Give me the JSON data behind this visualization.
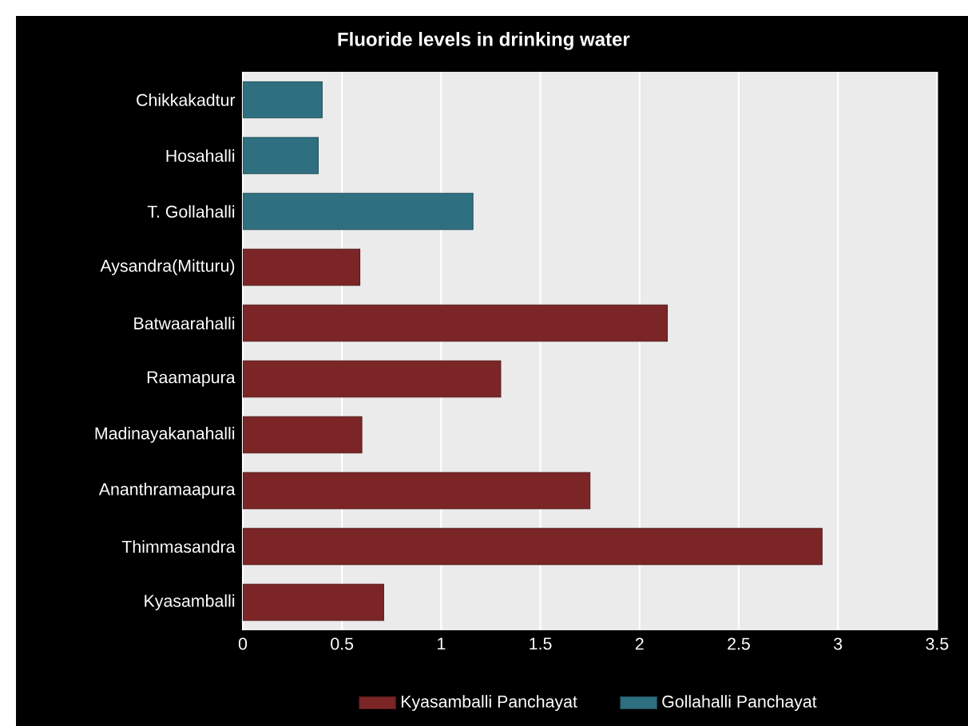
{
  "chart_data": {
    "type": "bar",
    "orientation": "horizontal",
    "title": "Fluoride levels in drinking water",
    "categories": [
      "Chikkakadtur",
      "Hosahalli",
      "T. Gollahalli",
      "Aysandra(Mitturu)",
      "Batwaarahalli",
      "Raamapura",
      "Madinayakanahalli",
      "Ananthramaapura",
      "Thimmasandra",
      "Kyasamballi"
    ],
    "series": [
      {
        "name": "Kyasamballi Panchayat",
        "color": "#7b2526",
        "values": [
          null,
          null,
          null,
          0.59,
          2.14,
          1.3,
          0.6,
          1.75,
          2.92,
          0.71
        ]
      },
      {
        "name": "Gollahalli Panchayat",
        "color": "#2e6f80",
        "values": [
          0.4,
          0.38,
          1.16,
          null,
          null,
          null,
          null,
          null,
          null,
          null
        ]
      }
    ],
    "xlim": [
      0,
      3.5
    ],
    "xticks": [
      0,
      0.5,
      1,
      1.5,
      2,
      2.5,
      3,
      3.5
    ],
    "grid": "x",
    "legend": "bottom"
  }
}
